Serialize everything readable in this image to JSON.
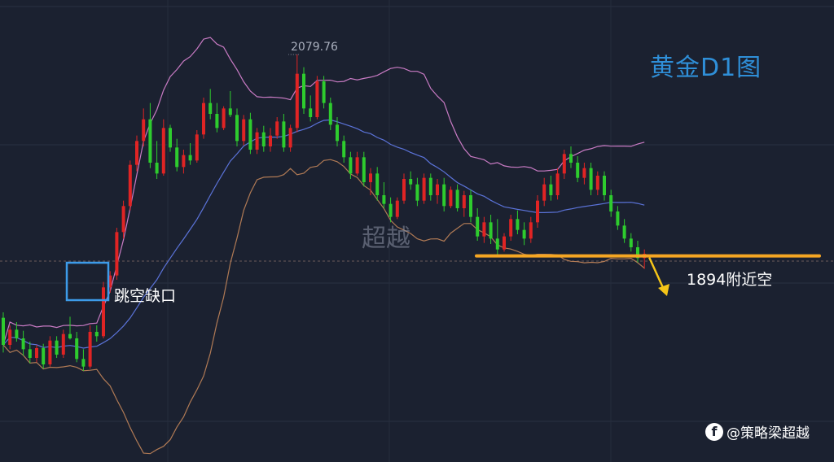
{
  "chart_data": {
    "type": "candlestick",
    "title": "黄金D1图",
    "ylim": [
      1740,
      2100
    ],
    "max_label": "2079.76",
    "annotations": {
      "gap": "跳空缺口",
      "short": "1894附近空",
      "watermark": "超越"
    },
    "horizontal_level": 1894,
    "colors": {
      "up": "#e02424",
      "down": "#2ecc2e",
      "upper_band": "#c97bc4",
      "middle_band": "#5b73d9",
      "lower_band": "#b07a55",
      "level_line": "#f5a623",
      "gap_box": "#3d9be9",
      "arrow": "#f5c518"
    },
    "candles": [
      [
        1837,
        1842,
        1805,
        1812
      ],
      [
        1812,
        1830,
        1808,
        1826
      ],
      [
        1826,
        1833,
        1815,
        1818
      ],
      [
        1818,
        1825,
        1802,
        1808
      ],
      [
        1808,
        1815,
        1795,
        1800
      ],
      [
        1800,
        1812,
        1796,
        1809
      ],
      [
        1809,
        1813,
        1790,
        1794
      ],
      [
        1794,
        1820,
        1792,
        1816
      ],
      [
        1816,
        1820,
        1800,
        1803
      ],
      [
        1803,
        1826,
        1800,
        1822
      ],
      [
        1822,
        1838,
        1817,
        1818
      ],
      [
        1818,
        1824,
        1796,
        1799
      ],
      [
        1799,
        1808,
        1788,
        1792
      ],
      [
        1792,
        1830,
        1790,
        1824
      ],
      [
        1824,
        1830,
        1815,
        1820
      ],
      [
        1820,
        1870,
        1818,
        1865
      ],
      [
        1865,
        1880,
        1860,
        1876
      ],
      [
        1876,
        1920,
        1872,
        1916
      ],
      [
        1916,
        1945,
        1910,
        1940
      ],
      [
        1940,
        1982,
        1936,
        1978
      ],
      [
        1978,
        2005,
        1972,
        2000
      ],
      [
        2000,
        2030,
        1995,
        2020
      ],
      [
        2020,
        2035,
        1975,
        1980
      ],
      [
        1980,
        2000,
        1965,
        1970
      ],
      [
        1970,
        2020,
        1968,
        2012
      ],
      [
        2012,
        2015,
        1990,
        1994
      ],
      [
        1994,
        2002,
        1972,
        1976
      ],
      [
        1976,
        1992,
        1970,
        1987
      ],
      [
        1987,
        1998,
        1978,
        1982
      ],
      [
        1982,
        2010,
        1980,
        2006
      ],
      [
        2006,
        2040,
        2002,
        2035
      ],
      [
        2035,
        2048,
        2020,
        2025
      ],
      [
        2025,
        2035,
        2008,
        2012
      ],
      [
        2012,
        2032,
        2010,
        2030
      ],
      [
        2030,
        2046,
        2022,
        2024
      ],
      [
        2024,
        2030,
        1995,
        2000
      ],
      [
        2000,
        2024,
        1996,
        2020
      ],
      [
        2020,
        2026,
        1988,
        1992
      ],
      [
        1992,
        2012,
        1988,
        2008
      ],
      [
        2008,
        2014,
        1990,
        1995
      ],
      [
        1995,
        2012,
        1990,
        2005
      ],
      [
        2005,
        2022,
        2002,
        2018
      ],
      [
        2018,
        2025,
        1990,
        1994
      ],
      [
        1994,
        2015,
        1990,
        2012
      ],
      [
        2012,
        2079.76,
        2008,
        2062
      ],
      [
        2062,
        2068,
        2025,
        2030
      ],
      [
        2030,
        2042,
        2018,
        2022
      ],
      [
        2022,
        2060,
        2020,
        2055
      ],
      [
        2055,
        2060,
        2030,
        2035
      ],
      [
        2035,
        2040,
        2010,
        2015
      ],
      [
        2015,
        2022,
        1995,
        2000
      ],
      [
        2000,
        2005,
        1980,
        1985
      ],
      [
        1985,
        1990,
        1965,
        1970
      ],
      [
        1970,
        1990,
        1968,
        1985
      ],
      [
        1985,
        1990,
        1958,
        1962
      ],
      [
        1962,
        1975,
        1950,
        1970
      ],
      [
        1970,
        1976,
        1945,
        1950
      ],
      [
        1950,
        1962,
        1938,
        1942
      ],
      [
        1942,
        1948,
        1925,
        1930
      ],
      [
        1930,
        1948,
        1928,
        1945
      ],
      [
        1945,
        1970,
        1942,
        1965
      ],
      [
        1965,
        1972,
        1955,
        1960
      ],
      [
        1960,
        1966,
        1940,
        1945
      ],
      [
        1945,
        1970,
        1942,
        1966
      ],
      [
        1966,
        1970,
        1945,
        1950
      ],
      [
        1950,
        1965,
        1942,
        1960
      ],
      [
        1960,
        1966,
        1935,
        1940
      ],
      [
        1940,
        1958,
        1938,
        1955
      ],
      [
        1955,
        1960,
        1935,
        1938
      ],
      [
        1938,
        1954,
        1930,
        1950
      ],
      [
        1950,
        1955,
        1925,
        1930
      ],
      [
        1930,
        1938,
        1908,
        1912
      ],
      [
        1912,
        1930,
        1906,
        1925
      ],
      [
        1925,
        1932,
        1905,
        1910
      ],
      [
        1910,
        1928,
        1895,
        1900
      ],
      [
        1900,
        1915,
        1898,
        1912
      ],
      [
        1912,
        1932,
        1908,
        1928
      ],
      [
        1928,
        1936,
        1914,
        1918
      ],
      [
        1918,
        1925,
        1904,
        1910
      ],
      [
        1910,
        1930,
        1906,
        1925
      ],
      [
        1925,
        1950,
        1920,
        1945
      ],
      [
        1945,
        1966,
        1940,
        1960
      ],
      [
        1960,
        1968,
        1945,
        1950
      ],
      [
        1950,
        1975,
        1946,
        1970
      ],
      [
        1970,
        1992,
        1965,
        1988
      ],
      [
        1988,
        1995,
        1975,
        1980
      ],
      [
        1980,
        1986,
        1962,
        1966
      ],
      [
        1966,
        1980,
        1960,
        1975
      ],
      [
        1975,
        1980,
        1950,
        1955
      ],
      [
        1955,
        1972,
        1950,
        1968
      ],
      [
        1968,
        1972,
        1945,
        1950
      ],
      [
        1950,
        1955,
        1930,
        1935
      ],
      [
        1935,
        1940,
        1918,
        1922
      ],
      [
        1922,
        1928,
        1906,
        1910
      ],
      [
        1910,
        1915,
        1898,
        1902
      ],
      [
        1902,
        1908,
        1888,
        1892
      ],
      [
        1892,
        1900,
        1882,
        1896
      ]
    ]
  }
}
